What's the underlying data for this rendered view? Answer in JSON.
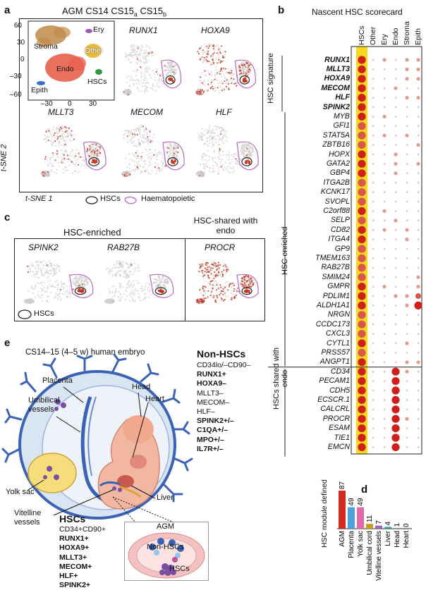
{
  "panel_a": {
    "letter": "a",
    "title": "AGM CS14 CS15",
    "title_sub_a": "a",
    "title_sub_b": "b",
    "inset_clusters": [
      "Stroma",
      "Ery",
      "Other",
      "Endo",
      "HSCs",
      "Epith"
    ],
    "inset_yticks": [
      "60",
      "30",
      "0",
      "–30",
      "–60"
    ],
    "inset_xticks": [
      "–30",
      "0",
      "30"
    ],
    "tsne_genes": [
      "RUNX1",
      "HOXA9",
      "MLLT3",
      "MECOM",
      "HLF"
    ],
    "ylabel": "t-SNE 2",
    "xlabel": "t-SNE 1",
    "legend_hscs": "HSCs",
    "legend_haem": "Haematopoietic"
  },
  "panel_b": {
    "letter": "b",
    "title": "Nascent HSC scorecard",
    "columns": [
      "HSCs",
      "Other",
      "Ery",
      "Endo",
      "Stroma",
      "Epith"
    ],
    "group_signature": "HSC signature",
    "group_enriched": "HSC enriched",
    "group_shared": "HSCs shared with endo",
    "genes": [
      {
        "name": "RUNX1",
        "bold": true,
        "dots": [
          3,
          0,
          1,
          0,
          1,
          1
        ]
      },
      {
        "name": "MLLT3",
        "bold": true,
        "dots": [
          3,
          0,
          0,
          0,
          1,
          1
        ]
      },
      {
        "name": "HOXA9",
        "bold": true,
        "dots": [
          3,
          0,
          0,
          0,
          1,
          1
        ]
      },
      {
        "name": "MECOM",
        "bold": true,
        "dots": [
          3,
          0,
          0,
          1,
          0,
          0
        ]
      },
      {
        "name": "HLF",
        "bold": true,
        "dots": [
          3,
          0,
          0,
          0,
          1,
          1
        ]
      },
      {
        "name": "SPINK2",
        "bold": true,
        "dots": [
          3,
          0,
          0,
          0,
          0,
          0
        ]
      },
      {
        "name": "MYB",
        "bold": false,
        "dots": [
          3,
          0,
          1,
          0,
          0,
          0
        ]
      },
      {
        "name": "GFI1",
        "bold": false,
        "dots": [
          2,
          0,
          0,
          0,
          0,
          0
        ]
      },
      {
        "name": "STAT5A",
        "bold": false,
        "dots": [
          2,
          0,
          1,
          0,
          1,
          0
        ]
      },
      {
        "name": "ZBTB16",
        "bold": false,
        "dots": [
          2,
          0,
          0,
          0,
          0,
          1
        ]
      },
      {
        "name": "HOPX",
        "bold": false,
        "dots": [
          3,
          0,
          0,
          1,
          0,
          0
        ]
      },
      {
        "name": "GATA2",
        "bold": false,
        "dots": [
          3,
          0,
          0,
          1,
          0,
          1
        ]
      },
      {
        "name": "GBP4",
        "bold": false,
        "dots": [
          3,
          0,
          0,
          1,
          0,
          0
        ]
      },
      {
        "name": "ITGA2B",
        "bold": false,
        "dots": [
          2,
          0,
          0,
          0,
          0,
          0
        ]
      },
      {
        "name": "KCNK17",
        "bold": false,
        "dots": [
          2,
          0,
          0,
          0,
          0,
          0
        ]
      },
      {
        "name": "SVOPL",
        "bold": false,
        "dots": [
          2,
          0,
          0,
          0,
          0,
          0
        ]
      },
      {
        "name": "C2orf88",
        "bold": false,
        "dots": [
          3,
          0,
          1,
          0,
          0,
          0
        ]
      },
      {
        "name": "SELP",
        "bold": false,
        "dots": [
          2,
          0,
          0,
          1,
          0,
          0
        ]
      },
      {
        "name": "CD82",
        "bold": false,
        "dots": [
          3,
          0,
          1,
          0,
          1,
          0
        ]
      },
      {
        "name": "ITGA4",
        "bold": false,
        "dots": [
          3,
          0,
          0,
          0,
          1,
          0
        ]
      },
      {
        "name": "GP9",
        "bold": false,
        "dots": [
          2,
          0,
          0,
          0,
          0,
          0
        ]
      },
      {
        "name": "TMEM163",
        "bold": false,
        "dots": [
          2,
          0,
          0,
          0,
          0,
          0
        ]
      },
      {
        "name": "RAB27B",
        "bold": false,
        "dots": [
          2,
          0,
          0,
          0,
          0,
          0
        ]
      },
      {
        "name": "SMIM24",
        "bold": false,
        "dots": [
          2,
          0,
          0,
          0,
          0,
          1
        ]
      },
      {
        "name": "GMPR",
        "bold": false,
        "dots": [
          3,
          0,
          1,
          0,
          0,
          1
        ]
      },
      {
        "name": "PDLIM1",
        "bold": false,
        "dots": [
          3,
          0,
          0,
          1,
          1,
          2
        ]
      },
      {
        "name": "ALDH1A1",
        "bold": false,
        "dots": [
          3,
          0,
          0,
          0,
          1,
          3
        ]
      },
      {
        "name": "NRGN",
        "bold": false,
        "dots": [
          2,
          0,
          0,
          0,
          0,
          0
        ]
      },
      {
        "name": "CCDC173",
        "bold": false,
        "dots": [
          2,
          0,
          0,
          0,
          0,
          0
        ]
      },
      {
        "name": "CXCL3",
        "bold": false,
        "dots": [
          2,
          0,
          0,
          0,
          0,
          0
        ]
      },
      {
        "name": "CYTL1",
        "bold": false,
        "dots": [
          3,
          0,
          0,
          0,
          1,
          0
        ]
      },
      {
        "name": "PRSS57",
        "bold": false,
        "dots": [
          2,
          0,
          0,
          0,
          0,
          0
        ]
      },
      {
        "name": "ANGPT1",
        "bold": false,
        "dots": [
          3,
          0,
          0,
          0,
          1,
          1
        ]
      },
      {
        "name": "CD34",
        "bold": false,
        "dots": [
          3,
          0,
          0,
          3,
          1,
          0
        ]
      },
      {
        "name": "PECAM1",
        "bold": false,
        "dots": [
          3,
          0,
          0,
          3,
          0,
          0
        ]
      },
      {
        "name": "CDH5",
        "bold": false,
        "dots": [
          3,
          0,
          0,
          3,
          0,
          0
        ]
      },
      {
        "name": "ECSCR.1",
        "bold": false,
        "dots": [
          3,
          0,
          0,
          3,
          0,
          0
        ]
      },
      {
        "name": "CALCRL",
        "bold": false,
        "dots": [
          3,
          0,
          0,
          3,
          0,
          0
        ]
      },
      {
        "name": "PROCR",
        "bold": false,
        "dots": [
          3,
          0,
          0,
          3,
          1,
          0
        ]
      },
      {
        "name": "ESAM",
        "bold": false,
        "dots": [
          3,
          0,
          0,
          3,
          0,
          0
        ]
      },
      {
        "name": "TIE1",
        "bold": false,
        "dots": [
          3,
          0,
          0,
          3,
          0,
          0
        ]
      },
      {
        "name": "EMCN",
        "bold": false,
        "dots": [
          3,
          0,
          0,
          3,
          0,
          0
        ]
      }
    ]
  },
  "panel_c": {
    "letter": "c",
    "header_enriched": "HSC-enriched",
    "header_shared": "HSC-shared with endo",
    "genes": [
      "SPINK2",
      "RAB27B",
      "PROCR"
    ],
    "legend_hscs": "HSCs"
  },
  "panel_d": {
    "letter": "d",
    "ylabel": "HSC module defined",
    "chart_data": {
      "type": "bar",
      "categories": [
        "AGM",
        "Placenta",
        "Yolk sac",
        "Umbilical cord",
        "Vitelline vessels",
        "Liver",
        "Head",
        "Heart"
      ],
      "values": [
        87,
        49,
        49,
        11,
        7,
        4,
        1,
        0
      ],
      "colors": [
        "#d42b1e",
        "#4aa3df",
        "#e06aa8",
        "#c99a1c",
        "#9b67b5",
        "#2aa198",
        "#555555",
        "#555555"
      ],
      "ylabel": "HSC module defined"
    }
  },
  "panel_e": {
    "letter": "e",
    "title": "CS14–15 (4–5 w) human embryo",
    "labels": {
      "placenta": "Placenta",
      "umbilical": "Umbilical vessels",
      "head": "Head",
      "heart": "Heart",
      "yolk": "Yolk sac",
      "liver": "Liver",
      "vitelline": "Vitelline vessels",
      "agm": "AGM",
      "inset_non": "Non-HSCs",
      "inset_hsc": "HSCs"
    },
    "non_hscs_title": "Non-HSCs",
    "non_hscs_markers": [
      {
        "text": "CD34lo/–CD90–",
        "bold": false
      },
      {
        "text": "RUNX1+",
        "bold": true
      },
      {
        "text": "HOXA9–",
        "bold": true
      },
      {
        "text": "MLLT3–",
        "bold": false
      },
      {
        "text": "MECOM–",
        "bold": false
      },
      {
        "text": "HLF–",
        "bold": false
      },
      {
        "text": "SPINK2+/–",
        "bold": true
      },
      {
        "text": "C1QA+/–",
        "bold": true
      },
      {
        "text": "MPO+/–",
        "bold": true
      },
      {
        "text": "IL7R+/–",
        "bold": true
      }
    ],
    "hscs_title": "HSCs",
    "hscs_markers": [
      {
        "text": "CD34+CD90+",
        "bold": false
      },
      {
        "text": "RUNX1+",
        "bold": true
      },
      {
        "text": "HOXA9+",
        "bold": true
      },
      {
        "text": "MLLT3+",
        "bold": true
      },
      {
        "text": "MECOM+",
        "bold": true
      },
      {
        "text": "HLF+",
        "bold": true
      },
      {
        "text": "SPINK2+",
        "bold": true
      }
    ]
  }
}
